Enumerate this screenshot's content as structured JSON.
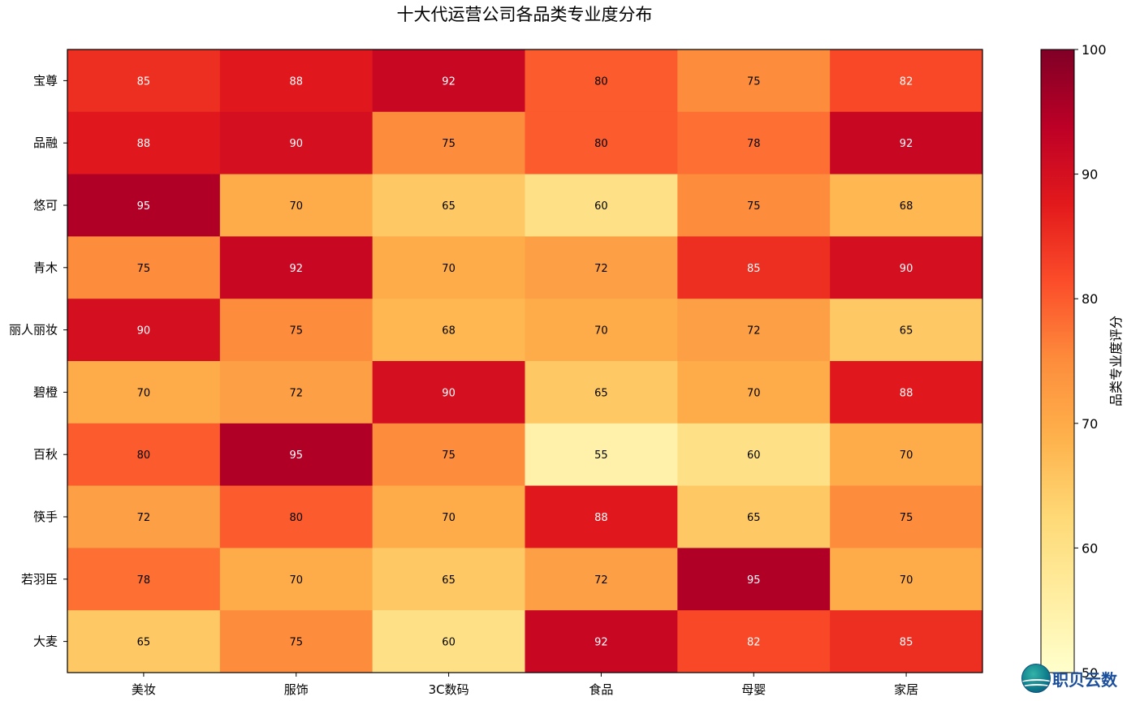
{
  "chart_data": {
    "type": "heatmap",
    "title": "十大代运营公司各品类专业度分布",
    "x_categories": [
      "美妆",
      "服饰",
      "3C数码",
      "食品",
      "母婴",
      "家居"
    ],
    "y_categories": [
      "宝尊",
      "品融",
      "悠可",
      "青木",
      "丽人丽妆",
      "碧橙",
      "百秋",
      "筷手",
      "若羽臣",
      "大麦"
    ],
    "values": [
      [
        85,
        88,
        92,
        80,
        75,
        82
      ],
      [
        88,
        90,
        75,
        80,
        78,
        92
      ],
      [
        95,
        70,
        65,
        60,
        75,
        68
      ],
      [
        75,
        92,
        70,
        72,
        85,
        90
      ],
      [
        90,
        75,
        68,
        70,
        72,
        65
      ],
      [
        70,
        72,
        90,
        65,
        70,
        88
      ],
      [
        80,
        95,
        75,
        55,
        60,
        70
      ],
      [
        72,
        80,
        70,
        88,
        65,
        75
      ],
      [
        78,
        70,
        65,
        72,
        95,
        70
      ],
      [
        65,
        75,
        60,
        92,
        82,
        85
      ]
    ],
    "colorbar": {
      "label": "品类专业度评分",
      "range": [
        50,
        100
      ],
      "ticks": [
        50,
        60,
        70,
        80,
        90,
        100
      ],
      "colormap": "YlOrRd"
    }
  },
  "watermark": {
    "text": "职贝云数",
    "icon": "globe-logo-icon"
  }
}
